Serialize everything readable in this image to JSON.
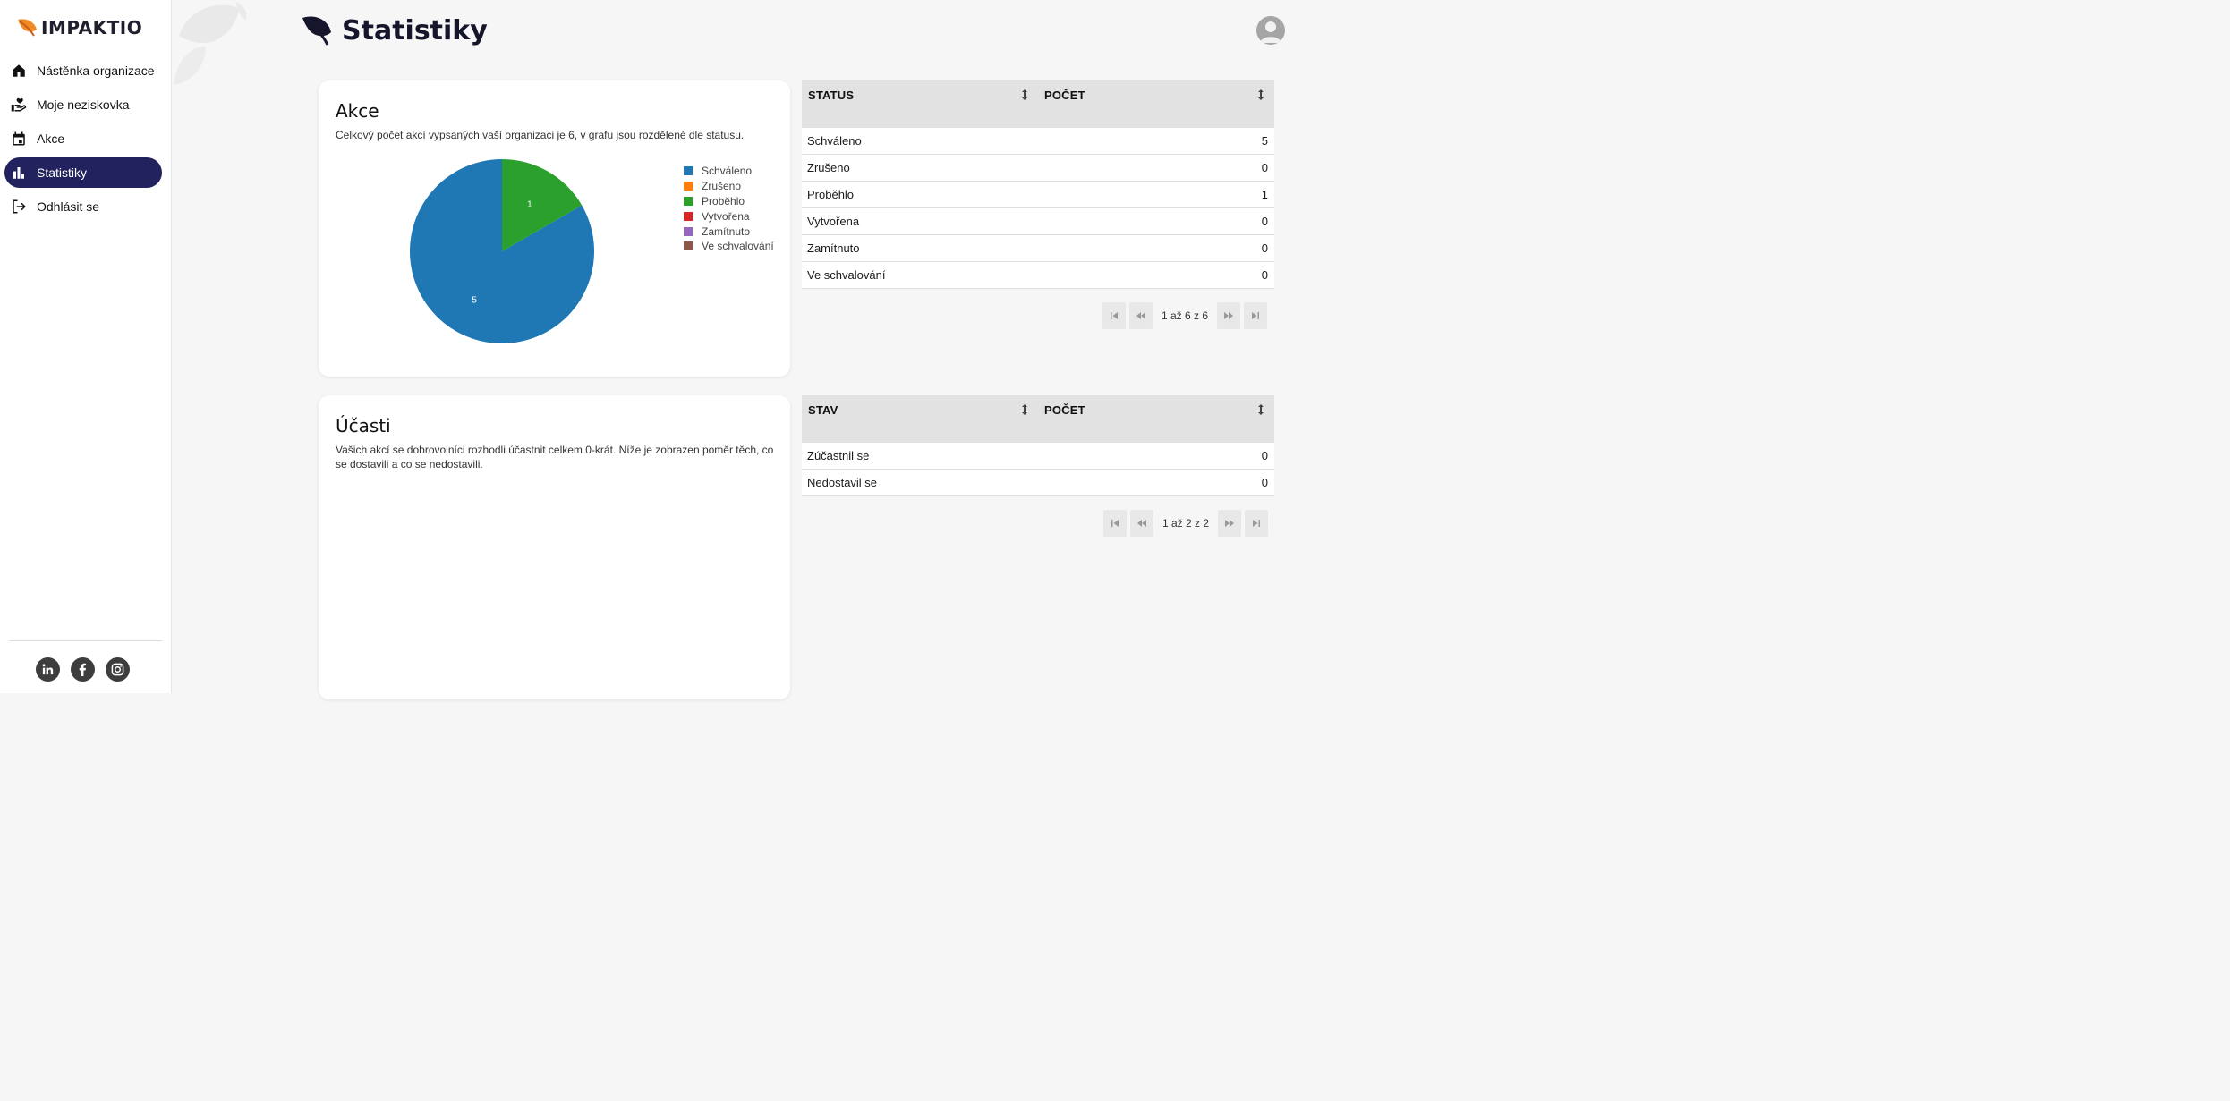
{
  "app": {
    "brand": "IMPAKTIO"
  },
  "sidebar": {
    "items": [
      {
        "label": "Nástěnka organizace",
        "icon": "home-icon"
      },
      {
        "label": "Moje neziskovka",
        "icon": "heart-hand-icon"
      },
      {
        "label": "Akce",
        "icon": "calendar-icon"
      },
      {
        "label": "Statistiky",
        "icon": "bar-chart-icon",
        "active": true
      },
      {
        "label": "Odhlásit se",
        "icon": "logout-icon"
      }
    ],
    "socials": [
      "linkedin-icon",
      "facebook-icon",
      "instagram-icon"
    ]
  },
  "header": {
    "title": "Statistiky"
  },
  "akce_card": {
    "title": "Akce",
    "description": "Celkový počet akcí vypsaných vaší organizaci je 6, v grafu jsou rozdělené dle statusu."
  },
  "ucasti_card": {
    "title": "Účasti",
    "description": "Vašich akcí se dobrovolníci rozhodli účastnit celkem 0-krát. Níže je zobrazen poměr těch, co se dostavili a co se nedostavili."
  },
  "chart_data": {
    "type": "pie",
    "categories": [
      "Schváleno",
      "Zrušeno",
      "Proběhlo",
      "Vytvořena",
      "Zamítnuto",
      "Ve schvalování"
    ],
    "values": [
      5,
      0,
      1,
      0,
      0,
      0
    ],
    "colors": [
      "#1f77b4",
      "#ff7f0e",
      "#2ca02c",
      "#d62728",
      "#9467bd",
      "#8c564b"
    ],
    "legend": "right"
  },
  "status_table": {
    "headers": [
      "STATUS",
      "POČET"
    ],
    "rows": [
      [
        "Schváleno",
        "5"
      ],
      [
        "Zrušeno",
        "0"
      ],
      [
        "Proběhlo",
        "1"
      ],
      [
        "Vytvořena",
        "0"
      ],
      [
        "Zamítnuto",
        "0"
      ],
      [
        "Ve schvalování",
        "0"
      ]
    ],
    "pager": "1 až 6 z 6"
  },
  "ucast_table": {
    "headers": [
      "STAV",
      "POČET"
    ],
    "rows": [
      [
        "Zúčastnil se",
        "0"
      ],
      [
        "Nedostavil se",
        "0"
      ]
    ],
    "pager": "1 až 2 z 2"
  }
}
